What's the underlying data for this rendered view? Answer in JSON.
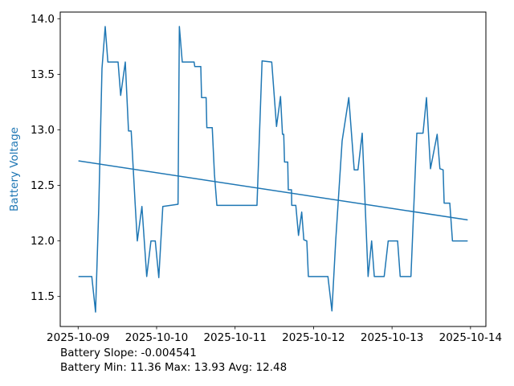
{
  "figure": {
    "ylabel": "Battery Voltage",
    "footer_line1": "Battery Slope: -0.004541",
    "footer_line2": "Battery Min: 11.36 Max: 13.93 Avg: 12.48",
    "colors": {
      "line": "#1f77b4",
      "trend": "#1f77b4",
      "ylabel_text": "#1f77b4",
      "tick_text": "#000000",
      "spine": "#000000",
      "background": "#ffffff"
    }
  },
  "chart_data": {
    "type": "line",
    "title": "",
    "xlabel": "",
    "ylabel": "Battery Voltage",
    "x_unit": "days since 2025-10-09 00:00",
    "xlim": [
      -0.228,
      5.196
    ],
    "ylim": [
      11.23,
      14.06
    ],
    "yticks": [
      11.5,
      12.0,
      12.5,
      13.0,
      13.5,
      14.0
    ],
    "xticks": {
      "positions": [
        0,
        1,
        2,
        3,
        4,
        5
      ],
      "labels": [
        "2025-10-09",
        "2025-10-10",
        "2025-10-11",
        "2025-10-12",
        "2025-10-13",
        "2025-10-14"
      ]
    },
    "grid": false,
    "legend": null,
    "annotations": [
      "Battery Slope: -0.004541",
      "Battery Min: 11.36 Max: 13.93 Avg: 12.48"
    ],
    "stats": {
      "slope": -0.004541,
      "min": 11.36,
      "max": 13.93,
      "avg": 12.48
    },
    "series": [
      {
        "name": "battery_voltage",
        "color": "#1f77b4",
        "width": 1.5,
        "points": [
          [
            0.01,
            11.68
          ],
          [
            0.174,
            11.68
          ],
          [
            0.222,
            11.36
          ],
          [
            0.263,
            12.3
          ],
          [
            0.304,
            13.55
          ],
          [
            0.345,
            13.93
          ],
          [
            0.379,
            13.61
          ],
          [
            0.509,
            13.61
          ],
          [
            0.542,
            13.31
          ],
          [
            0.601,
            13.61
          ],
          [
            0.642,
            12.99
          ],
          [
            0.676,
            12.99
          ],
          [
            0.727,
            12.33
          ],
          [
            0.754,
            12.0
          ],
          [
            0.813,
            12.31
          ],
          [
            0.874,
            11.68
          ],
          [
            0.928,
            12.0
          ],
          [
            0.983,
            12.0
          ],
          [
            1.028,
            11.67
          ],
          [
            1.079,
            12.31
          ],
          [
            1.273,
            12.33
          ],
          [
            1.29,
            13.93
          ],
          [
            1.327,
            13.61
          ],
          [
            1.478,
            13.61
          ],
          [
            1.486,
            13.57
          ],
          [
            1.563,
            13.57
          ],
          [
            1.573,
            13.29
          ],
          [
            1.631,
            13.29
          ],
          [
            1.64,
            13.02
          ],
          [
            1.709,
            13.02
          ],
          [
            1.737,
            12.6
          ],
          [
            1.768,
            12.32
          ],
          [
            2.279,
            12.32
          ],
          [
            2.344,
            13.62
          ],
          [
            2.467,
            13.61
          ],
          [
            2.528,
            13.03
          ],
          [
            2.579,
            13.3
          ],
          [
            2.604,
            12.96
          ],
          [
            2.62,
            12.96
          ],
          [
            2.63,
            12.71
          ],
          [
            2.671,
            12.71
          ],
          [
            2.678,
            12.46
          ],
          [
            2.719,
            12.46
          ],
          [
            2.722,
            12.32
          ],
          [
            2.774,
            12.32
          ],
          [
            2.808,
            12.05
          ],
          [
            2.849,
            12.26
          ],
          [
            2.876,
            12.01
          ],
          [
            2.914,
            12.0
          ],
          [
            2.934,
            11.68
          ],
          [
            3.183,
            11.68
          ],
          [
            3.234,
            11.37
          ],
          [
            3.282,
            12.0
          ],
          [
            3.364,
            12.9
          ],
          [
            3.449,
            13.29
          ],
          [
            3.518,
            12.64
          ],
          [
            3.566,
            12.64
          ],
          [
            3.62,
            12.97
          ],
          [
            3.695,
            11.68
          ],
          [
            3.74,
            12.0
          ],
          [
            3.774,
            11.68
          ],
          [
            3.9,
            11.68
          ],
          [
            3.951,
            12.0
          ],
          [
            4.071,
            12.0
          ],
          [
            4.104,
            11.68
          ],
          [
            4.241,
            11.68
          ],
          [
            4.316,
            12.97
          ],
          [
            4.395,
            12.97
          ],
          [
            4.439,
            13.29
          ],
          [
            4.49,
            12.65
          ],
          [
            4.575,
            12.96
          ],
          [
            4.61,
            12.65
          ],
          [
            4.651,
            12.64
          ],
          [
            4.664,
            12.34
          ],
          [
            4.736,
            12.34
          ],
          [
            4.77,
            12.0
          ],
          [
            4.958,
            12.0
          ]
        ]
      },
      {
        "name": "trend",
        "color": "#1f77b4",
        "width": 1.5,
        "points": [
          [
            0.01,
            12.72
          ],
          [
            4.958,
            12.19
          ]
        ]
      }
    ]
  }
}
